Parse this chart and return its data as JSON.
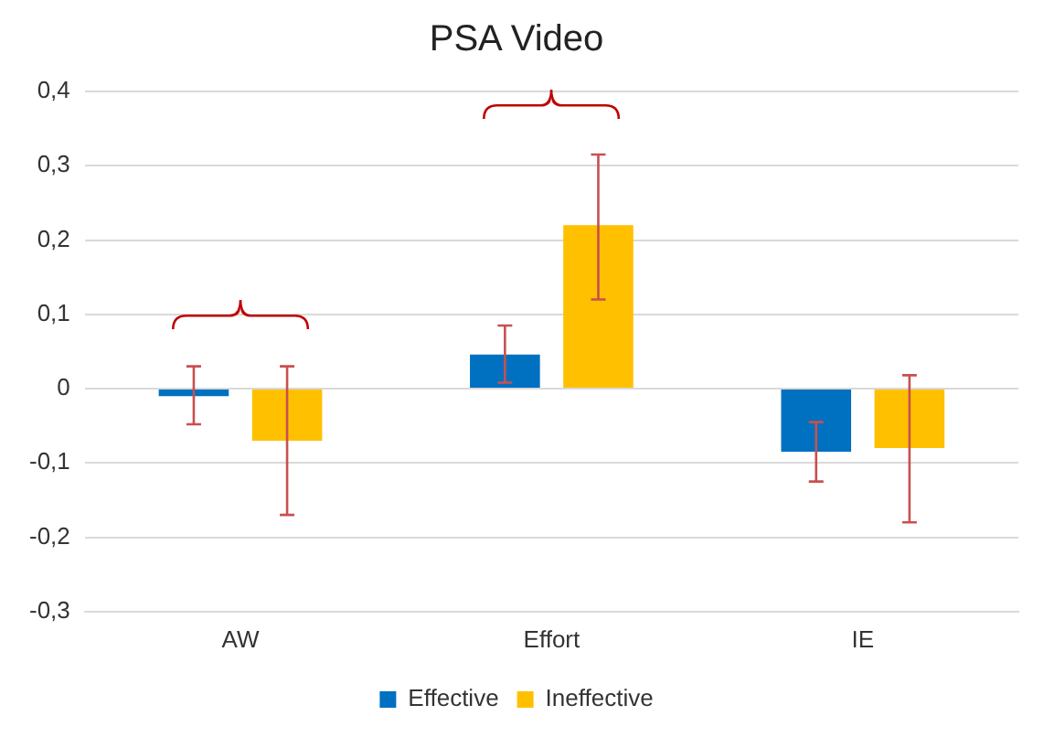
{
  "chart_data": {
    "type": "bar",
    "title": "PSA Video",
    "categories": [
      "AW",
      "Effort",
      "IE"
    ],
    "series": [
      {
        "name": "Effective",
        "color": "#0070c0",
        "values": [
          -0.01,
          0.046,
          -0.085
        ],
        "errors": [
          [
            -0.048,
            0.03
          ],
          [
            0.008,
            0.085
          ],
          [
            -0.125,
            -0.045
          ]
        ]
      },
      {
        "name": "Ineffective",
        "color": "#ffc000",
        "values": [
          -0.07,
          0.22,
          -0.08
        ],
        "errors": [
          [
            -0.17,
            0.03
          ],
          [
            0.12,
            0.315
          ],
          [
            -0.18,
            0.018
          ]
        ]
      }
    ],
    "ylim": [
      -0.3,
      0.4
    ],
    "yticks": [
      {
        "value": -0.3,
        "label": "-0,3"
      },
      {
        "value": -0.2,
        "label": "-0,2"
      },
      {
        "value": -0.1,
        "label": "-0,1"
      },
      0,
      {
        "value": 0.1,
        "label": "0,1"
      },
      {
        "value": 0.2,
        "label": "0,2"
      },
      {
        "value": 0.3,
        "label": "0,3"
      },
      {
        "value": 0.4,
        "label": "0,4"
      }
    ],
    "grid": "y",
    "legend": "bottom"
  }
}
